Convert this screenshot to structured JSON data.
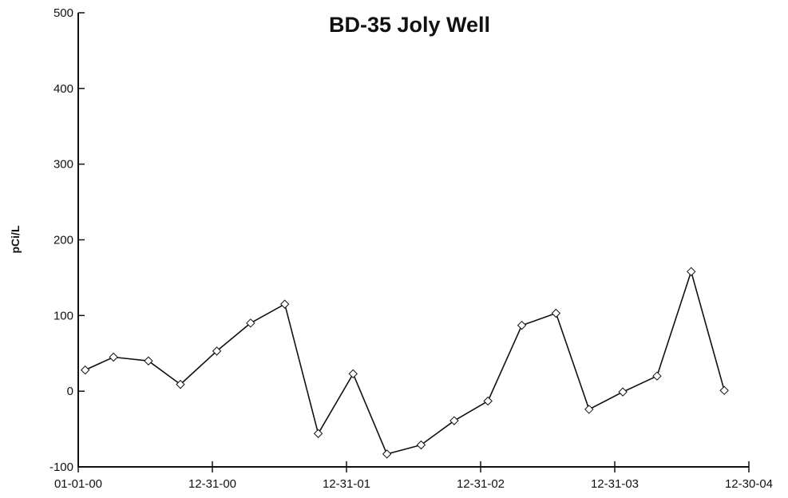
{
  "chart_data": {
    "type": "line",
    "title": "BD-35  Joly Well",
    "xlabel": "",
    "ylabel": "pCi/L",
    "ylim": [
      -100,
      500
    ],
    "yticks": [
      -100,
      0,
      100,
      200,
      300,
      400,
      500
    ],
    "xticks": [
      "01-01-00",
      "12-31-00",
      "12-31-01",
      "12-31-02",
      "12-31-03",
      "12-30-04"
    ],
    "xtick_dates": [
      "2000-01-01",
      "2000-12-31",
      "2001-12-31",
      "2002-12-31",
      "2003-12-31",
      "2004-12-30"
    ],
    "xlim": [
      "2000-01-01",
      "2004-12-30"
    ],
    "grid": false,
    "legend": "none",
    "series": [
      {
        "color": "#111111",
        "marker": "diamond",
        "points": [
          {
            "x": "2000-01-20",
            "y": 28
          },
          {
            "x": "2000-04-06",
            "y": 45
          },
          {
            "x": "2000-07-10",
            "y": 40
          },
          {
            "x": "2000-10-05",
            "y": 9
          },
          {
            "x": "2001-01-12",
            "y": 53
          },
          {
            "x": "2001-04-14",
            "y": 90
          },
          {
            "x": "2001-07-16",
            "y": 115
          },
          {
            "x": "2001-10-15",
            "y": -56
          },
          {
            "x": "2002-01-18",
            "y": 23
          },
          {
            "x": "2002-04-20",
            "y": -83
          },
          {
            "x": "2002-07-22",
            "y": -71
          },
          {
            "x": "2002-10-20",
            "y": -39
          },
          {
            "x": "2003-01-20",
            "y": -13
          },
          {
            "x": "2003-04-22",
            "y": 87
          },
          {
            "x": "2003-07-24",
            "y": 103
          },
          {
            "x": "2003-10-22",
            "y": -24
          },
          {
            "x": "2004-01-22",
            "y": -1
          },
          {
            "x": "2004-04-24",
            "y": 20
          },
          {
            "x": "2004-07-26",
            "y": 158
          },
          {
            "x": "2004-10-24",
            "y": 1
          }
        ]
      }
    ]
  }
}
